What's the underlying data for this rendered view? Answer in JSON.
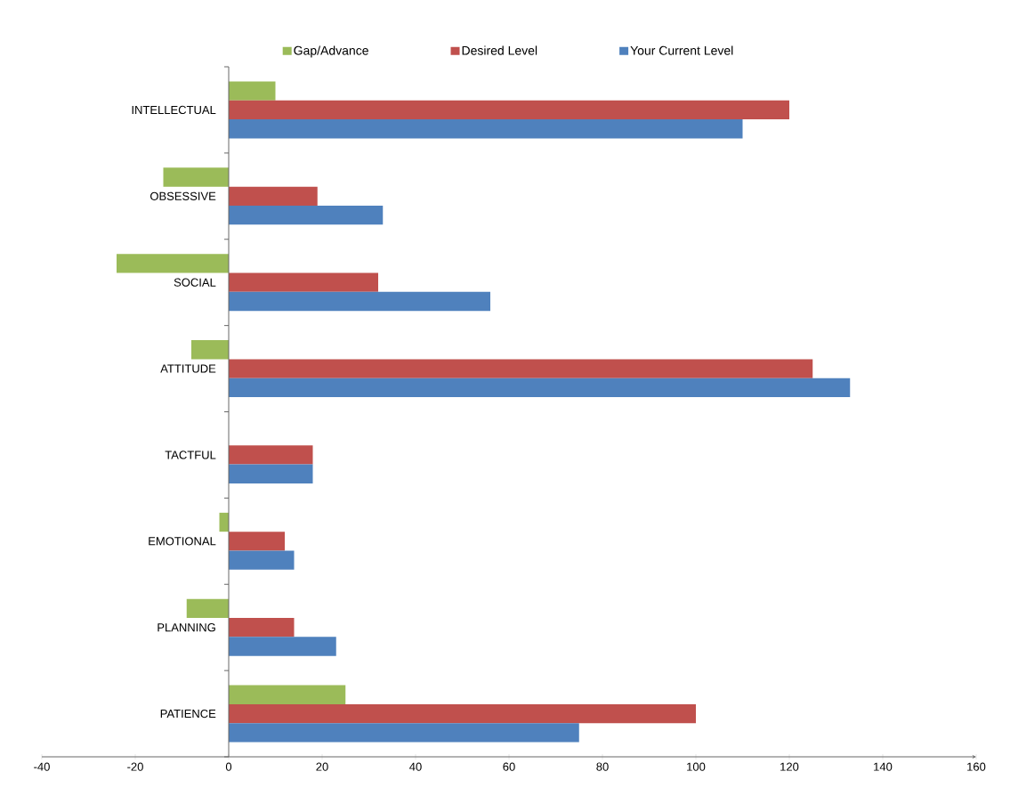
{
  "chart_data": {
    "type": "bar",
    "orientation": "horizontal",
    "categories": [
      "INTELLECTUAL",
      "OBSESSIVE",
      "SOCIAL",
      "ATTITUDE",
      "TACTFUL",
      "EMOTIONAL",
      "PLANNING",
      "PATIENCE"
    ],
    "series": [
      {
        "name": "Gap/Advance",
        "color": "#9bbb59",
        "values": [
          10,
          -14,
          -24,
          -8,
          0,
          -2,
          -9,
          25
        ]
      },
      {
        "name": "Desired Level",
        "color": "#c0504d",
        "values": [
          120,
          19,
          32,
          125,
          18,
          12,
          14,
          100
        ]
      },
      {
        "name": "Your Current Level",
        "color": "#4f81bd",
        "values": [
          110,
          33,
          56,
          133,
          18,
          14,
          23,
          75
        ]
      }
    ],
    "xlim": [
      -40,
      160
    ],
    "xticks": [
      -40,
      -20,
      0,
      20,
      40,
      60,
      80,
      100,
      120,
      140,
      160
    ],
    "legend": "top",
    "grid": false
  }
}
